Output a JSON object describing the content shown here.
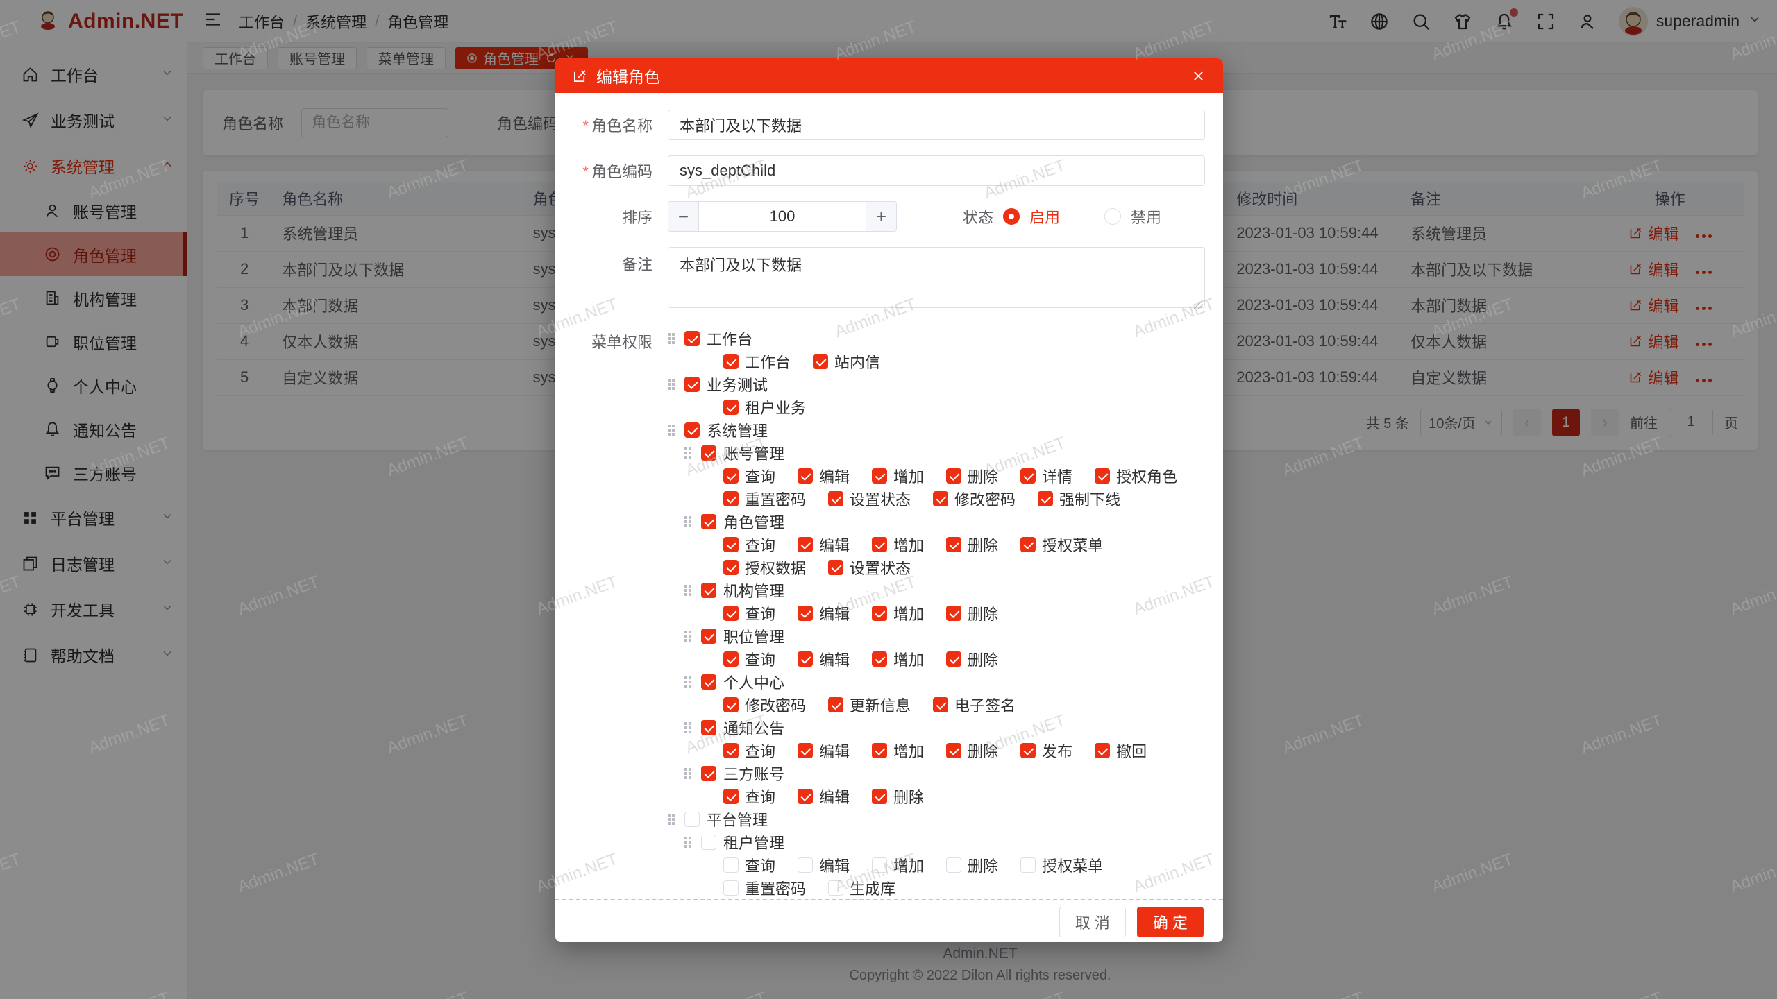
{
  "app": {
    "watermark": "Admin.NET",
    "footer_line1": "Admin.NET",
    "footer_line2": "Copyright © 2022 Dilon All rights reserved.",
    "accent_color": "#ed3012"
  },
  "brand": {
    "name": "Admin.NET"
  },
  "topbar": {
    "breadcrumb": [
      "工作台",
      "系统管理",
      "角色管理"
    ],
    "action_icons": [
      {
        "name": "font-size-icon",
        "glyph": "font",
        "badge": false
      },
      {
        "name": "language-icon",
        "glyph": "language",
        "badge": false
      },
      {
        "name": "search-icon",
        "glyph": "search",
        "badge": false
      },
      {
        "name": "theme-icon",
        "glyph": "shirt",
        "badge": false
      },
      {
        "name": "notification-icon",
        "glyph": "bell",
        "badge": true
      },
      {
        "name": "fullscreen-icon",
        "glyph": "fullscreen",
        "badge": false
      },
      {
        "name": "profile-icon",
        "glyph": "person",
        "badge": false
      }
    ],
    "user": {
      "name": "superadmin"
    }
  },
  "tabs": [
    {
      "label": "工作台",
      "active": false,
      "closable": false
    },
    {
      "label": "账号管理",
      "active": false,
      "closable": false
    },
    {
      "label": "菜单管理",
      "active": false,
      "closable": false
    },
    {
      "label": "角色管理",
      "active": true,
      "closable": true
    }
  ],
  "sidebar": [
    {
      "label": "工作台",
      "icon": "home",
      "expandable": true,
      "expanded": false,
      "active": false
    },
    {
      "label": "业务测试",
      "icon": "send",
      "expandable": true,
      "expanded": false,
      "active": false
    },
    {
      "label": "系统管理",
      "icon": "gear",
      "expandable": true,
      "expanded": true,
      "active": true,
      "children": [
        {
          "label": "账号管理",
          "icon": "user",
          "active": false
        },
        {
          "label": "角色管理",
          "icon": "target",
          "active": true
        },
        {
          "label": "机构管理",
          "icon": "org",
          "active": false
        },
        {
          "label": "职位管理",
          "icon": "badge",
          "active": false
        },
        {
          "label": "个人中心",
          "icon": "watch",
          "active": false
        },
        {
          "label": "通知公告",
          "icon": "bell",
          "active": false
        },
        {
          "label": "三方账号",
          "icon": "chat",
          "active": false
        }
      ]
    },
    {
      "label": "平台管理",
      "icon": "grid",
      "expandable": true,
      "expanded": false,
      "active": false
    },
    {
      "label": "日志管理",
      "icon": "docs",
      "expandable": true,
      "expanded": false,
      "active": false
    },
    {
      "label": "开发工具",
      "icon": "chip",
      "expandable": true,
      "expanded": false,
      "active": false
    },
    {
      "label": "帮助文档",
      "icon": "book",
      "expandable": true,
      "expanded": false,
      "active": false
    }
  ],
  "search": {
    "name_label": "角色名称",
    "name_placeholder": "角色名称",
    "name_value": "",
    "code_label": "角色编码",
    "code_placeholder": "角色编码",
    "code_value": ""
  },
  "table": {
    "headers": [
      "序号",
      "角色名称",
      "角色编码",
      "修改时间",
      "备注",
      "操作"
    ],
    "edit_label": "编辑",
    "rows": [
      {
        "no": "1",
        "name": "系统管理员",
        "code": "sys_",
        "time": "2023-01-03 10:59:44",
        "remark": "系统管理员"
      },
      {
        "no": "2",
        "name": "本部门及以下数据",
        "code": "sys_deptChild",
        "time": "2023-01-03 10:59:44",
        "remark": "本部门及以下数据"
      },
      {
        "no": "3",
        "name": "本部门数据",
        "code": "sys_",
        "time": "2023-01-03 10:59:44",
        "remark": "本部门数据"
      },
      {
        "no": "4",
        "name": "仅本人数据",
        "code": "sys_",
        "time": "2023-01-03 10:59:44",
        "remark": "仅本人数据"
      },
      {
        "no": "5",
        "name": "自定义数据",
        "code": "sys_",
        "time": "2023-01-03 10:59:44",
        "remark": "自定义数据"
      }
    ]
  },
  "pagination": {
    "total": "共 5 条",
    "page_size": "10条/页",
    "current_page": "1",
    "goto_label": "前往",
    "goto_value": "1",
    "page_unit": "页"
  },
  "modal": {
    "title": "编辑角色",
    "fields": {
      "name_label": "角色名称",
      "name_value": "本部门及以下数据",
      "code_label": "角色编码",
      "code_value": "sys_deptChild",
      "sort_label": "排序",
      "sort_value": "100",
      "status_label": "状态",
      "status_options": [
        {
          "label": "启用",
          "selected": true
        },
        {
          "label": "禁用",
          "selected": false
        }
      ],
      "remark_label": "备注",
      "remark_value": "本部门及以下数据",
      "menu_label": "菜单权限"
    },
    "tree": [
      {
        "label": "工作台",
        "checked": true,
        "leaves": [
          {
            "label": "工作台",
            "checked": true
          },
          {
            "label": "站内信",
            "checked": true
          }
        ]
      },
      {
        "label": "业务测试",
        "checked": true,
        "leaves": [
          {
            "label": "租户业务",
            "checked": true
          }
        ]
      },
      {
        "label": "系统管理",
        "checked": true,
        "children": [
          {
            "label": "账号管理",
            "checked": true,
            "leaves": [
              {
                "label": "查询",
                "checked": true
              },
              {
                "label": "编辑",
                "checked": true
              },
              {
                "label": "增加",
                "checked": true
              },
              {
                "label": "删除",
                "checked": true
              },
              {
                "label": "详情",
                "checked": true
              },
              {
                "label": "授权角色",
                "checked": true
              },
              {
                "label": "重置密码",
                "checked": true
              },
              {
                "label": "设置状态",
                "checked": true
              },
              {
                "label": "修改密码",
                "checked": true
              },
              {
                "label": "强制下线",
                "checked": true
              }
            ]
          },
          {
            "label": "角色管理",
            "checked": true,
            "leaves": [
              {
                "label": "查询",
                "checked": true
              },
              {
                "label": "编辑",
                "checked": true
              },
              {
                "label": "增加",
                "checked": true
              },
              {
                "label": "删除",
                "checked": true
              },
              {
                "label": "授权菜单",
                "checked": true
              },
              {
                "label": "授权数据",
                "checked": true
              },
              {
                "label": "设置状态",
                "checked": true
              }
            ]
          },
          {
            "label": "机构管理",
            "checked": true,
            "leaves": [
              {
                "label": "查询",
                "checked": true
              },
              {
                "label": "编辑",
                "checked": true
              },
              {
                "label": "增加",
                "checked": true
              },
              {
                "label": "删除",
                "checked": true
              }
            ]
          },
          {
            "label": "职位管理",
            "checked": true,
            "leaves": [
              {
                "label": "查询",
                "checked": true
              },
              {
                "label": "编辑",
                "checked": true
              },
              {
                "label": "增加",
                "checked": true
              },
              {
                "label": "删除",
                "checked": true
              }
            ]
          },
          {
            "label": "个人中心",
            "checked": true,
            "leaves": [
              {
                "label": "修改密码",
                "checked": true
              },
              {
                "label": "更新信息",
                "checked": true
              },
              {
                "label": "电子签名",
                "checked": true
              }
            ]
          },
          {
            "label": "通知公告",
            "checked": true,
            "leaves": [
              {
                "label": "查询",
                "checked": true
              },
              {
                "label": "编辑",
                "checked": true
              },
              {
                "label": "增加",
                "checked": true
              },
              {
                "label": "删除",
                "checked": true
              },
              {
                "label": "发布",
                "checked": true
              },
              {
                "label": "撤回",
                "checked": true
              }
            ]
          },
          {
            "label": "三方账号",
            "checked": true,
            "leaves": [
              {
                "label": "查询",
                "checked": true
              },
              {
                "label": "编辑",
                "checked": true
              },
              {
                "label": "删除",
                "checked": true
              }
            ]
          }
        ]
      },
      {
        "label": "平台管理",
        "checked": false,
        "children": [
          {
            "label": "租户管理",
            "checked": false,
            "leaves": [
              {
                "label": "查询",
                "checked": false
              },
              {
                "label": "编辑",
                "checked": false
              },
              {
                "label": "增加",
                "checked": false
              },
              {
                "label": "删除",
                "checked": false
              },
              {
                "label": "授权菜单",
                "checked": false
              },
              {
                "label": "重置密码",
                "checked": false
              },
              {
                "label": "生成库",
                "checked": false
              }
            ]
          }
        ]
      }
    ],
    "cancel_label": "取 消",
    "ok_label": "确 定"
  }
}
